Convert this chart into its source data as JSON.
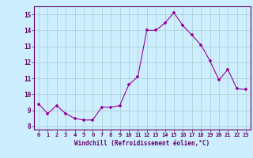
{
  "x": [
    0,
    1,
    2,
    3,
    4,
    5,
    6,
    7,
    8,
    9,
    10,
    11,
    12,
    13,
    14,
    15,
    16,
    17,
    18,
    19,
    20,
    21,
    22,
    23
  ],
  "y": [
    9.4,
    8.8,
    9.3,
    8.8,
    8.5,
    8.4,
    8.4,
    9.2,
    9.2,
    9.3,
    10.6,
    11.1,
    14.0,
    14.0,
    14.45,
    15.1,
    14.3,
    13.7,
    13.1,
    12.1,
    10.9,
    11.55,
    10.35,
    10.3
  ],
  "xlabel": "Windchill (Refroidissement éolien,°C)",
  "ylim": [
    7.8,
    15.5
  ],
  "xlim": [
    -0.5,
    23.5
  ],
  "yticks": [
    8,
    9,
    10,
    11,
    12,
    13,
    14,
    15
  ],
  "xticks": [
    0,
    1,
    2,
    3,
    4,
    5,
    6,
    7,
    8,
    9,
    10,
    11,
    12,
    13,
    14,
    15,
    16,
    17,
    18,
    19,
    20,
    21,
    22,
    23
  ],
  "line_color": "#990099",
  "marker_color": "#990099",
  "bg_color": "#cceeff",
  "grid_color": "#aacccc",
  "label_color": "#660066",
  "tick_color": "#660066"
}
